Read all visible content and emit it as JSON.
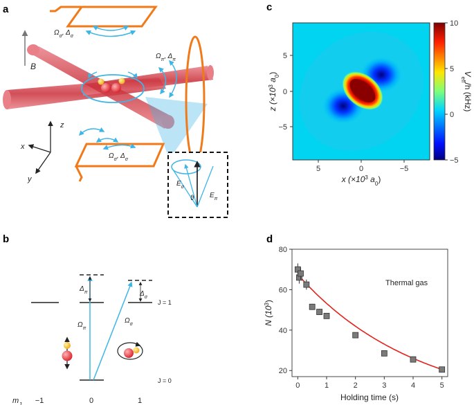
{
  "panels": {
    "a": "a",
    "b": "b",
    "c": "c",
    "d": "d"
  },
  "panel_a": {
    "B": "B",
    "omega_sigma_delta_sigma": "Ω",
    "omega_pi_delta_pi": "Ω",
    "axes": {
      "z": "z",
      "x": "x",
      "y": "y"
    },
    "inset": {
      "E_sigma": "E",
      "E_pi": "E",
      "theta": "ϑ"
    }
  },
  "panel_b": {
    "delta_pi": "Δ",
    "delta_sigma": "Δ",
    "omega_pi": "Ω",
    "omega_sigma": "Ω",
    "J1": "J = 1",
    "J0": "J = 0",
    "mJ": "m",
    "mJ_values": [
      "−1",
      "0",
      "1"
    ]
  },
  "panel_c": {
    "xlabel": "x (×10",
    "zlabel": "z (×10",
    "xticks": [
      "5",
      "0",
      "−5"
    ],
    "zticks": [
      "5",
      "0",
      "−5"
    ],
    "colorbar_ticks": [
      "10",
      "5",
      "0",
      "−5"
    ],
    "colorbar_label": "V",
    "colorbar_label_suffix": "/h (kHz)"
  },
  "chart_data": {
    "type": "scatter",
    "title": "",
    "annotation": "Thermal gas",
    "xlabel": "Holding time (s)",
    "ylabel": "N (10",
    "xlim": [
      -0.2,
      5.2
    ],
    "ylim": [
      17,
      80
    ],
    "xticks": [
      0,
      1,
      2,
      3,
      4,
      5
    ],
    "yticks": [
      20,
      40,
      60,
      80
    ],
    "series": [
      {
        "x": [
          0,
          0.05,
          0.1,
          0.3,
          0.5,
          0.75,
          1.0,
          2.0,
          3.0,
          4.0,
          5.0
        ],
        "y": [
          70,
          66,
          68,
          62.5,
          51.5,
          49,
          47,
          37.5,
          28.5,
          25.5,
          20.5
        ],
        "yerr": [
          3,
          3,
          3,
          2.5,
          1.5,
          1.5,
          1,
          1,
          1,
          1,
          1
        ]
      }
    ],
    "fit": {
      "type": "exponential",
      "amplitude": 67.5,
      "tau": 4.2
    }
  },
  "colors": {
    "fit": "#e3231b",
    "marker": "#7a7a7a",
    "cyan": "#3db5e6",
    "orange": "#f07a1a",
    "beam": "#d9454b"
  }
}
